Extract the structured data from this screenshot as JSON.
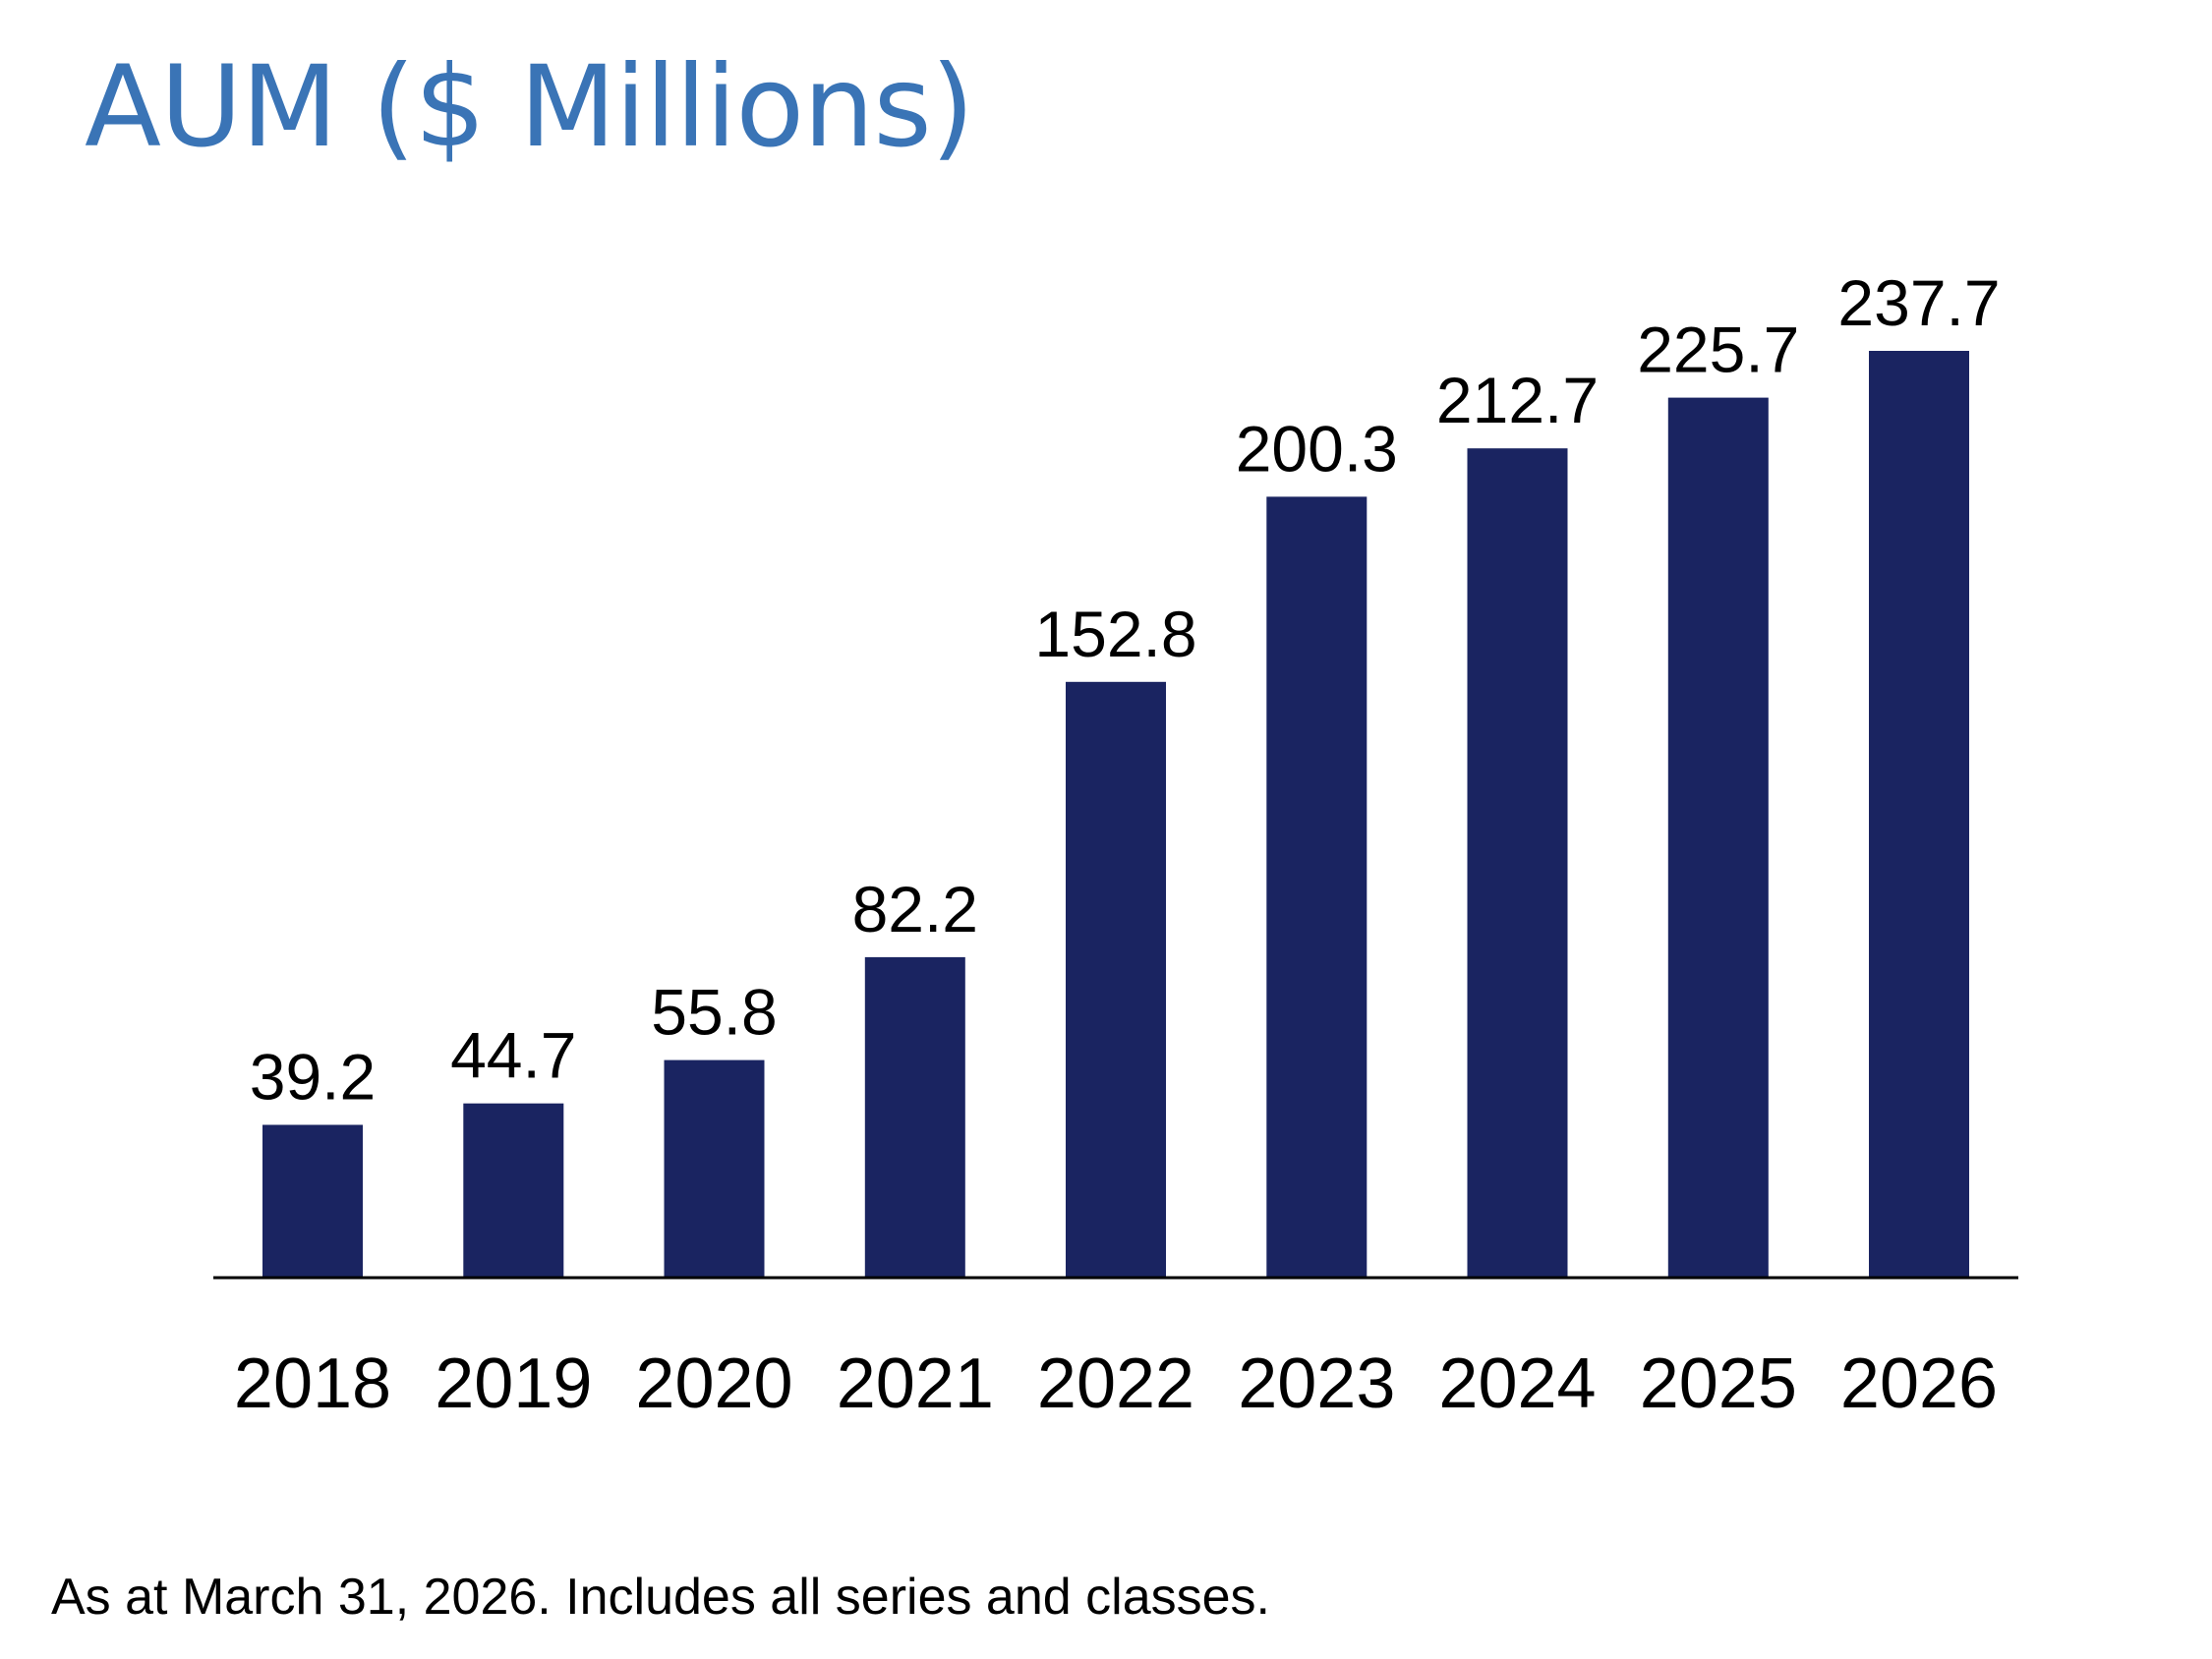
{
  "title": "AUM ($ Millions)",
  "footnote": "As at March 31, 2026. Includes all series and classes.",
  "colors": {
    "title": "#3a74b6",
    "bar": "#1a2461",
    "axis": "#000000",
    "text": "#000000"
  },
  "chart_data": {
    "type": "bar",
    "title": "AUM ($ Millions)",
    "categories": [
      "2018",
      "2019",
      "2020",
      "2021",
      "2022",
      "2023",
      "2024",
      "2025",
      "2026"
    ],
    "values": [
      39.2,
      44.7,
      55.8,
      82.2,
      152.8,
      200.3,
      212.7,
      225.7,
      237.7
    ],
    "value_labels": [
      "39.2",
      "44.7",
      "55.8",
      "82.2",
      "152.8",
      "200.3",
      "212.7",
      "225.7",
      "237.7"
    ],
    "xlabel": "",
    "ylabel": "",
    "ylim": [
      0,
      237.7
    ],
    "grid": false,
    "legend": "none",
    "data_labels": "above-bars"
  }
}
